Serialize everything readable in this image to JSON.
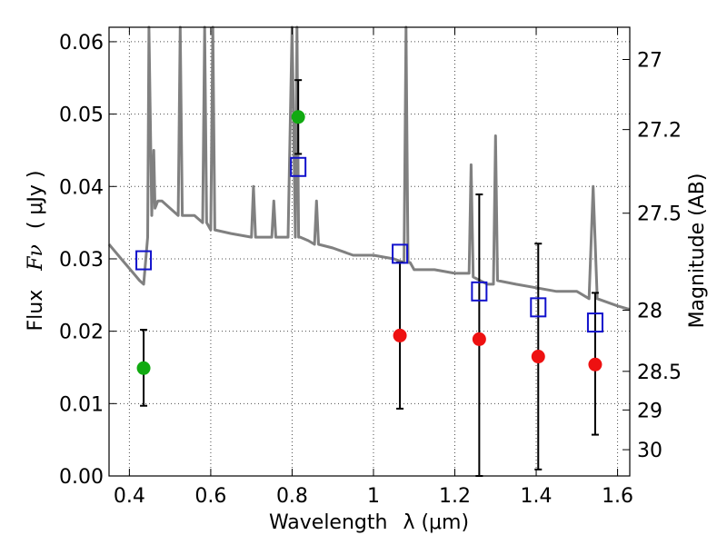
{
  "chart_data": {
    "type": "scatter",
    "xlabel": "Wavelength",
    "xlabel_symbol": "λ (μm)",
    "ylabel": "Flux",
    "ylabel_symbol": "Fν",
    "ylabel_unit": "( μJy )",
    "y2label": "Magnitude (AB)",
    "xlim": [
      0.35,
      1.63
    ],
    "ylim": [
      0.0,
      0.062
    ],
    "grid": true,
    "x_ticks": [
      {
        "value": 0.4,
        "label": "0.4"
      },
      {
        "value": 0.6,
        "label": "0.6"
      },
      {
        "value": 0.8,
        "label": "0.8"
      },
      {
        "value": 1.0,
        "label": "1"
      },
      {
        "value": 1.2,
        "label": "1.2"
      },
      {
        "value": 1.4,
        "label": "1.4"
      },
      {
        "value": 1.6,
        "label": "1.6"
      }
    ],
    "y_ticks": [
      {
        "value": 0.0,
        "label": "0.00"
      },
      {
        "value": 0.01,
        "label": "0.01"
      },
      {
        "value": 0.02,
        "label": "0.02"
      },
      {
        "value": 0.03,
        "label": "0.03"
      },
      {
        "value": 0.04,
        "label": "0.04"
      },
      {
        "value": 0.05,
        "label": "0.05"
      },
      {
        "value": 0.06,
        "label": "0.06"
      }
    ],
    "y2_ticks": [
      {
        "value": 27,
        "label": "27"
      },
      {
        "value": 27.2,
        "label": "27.2"
      },
      {
        "value": 27.5,
        "label": "27.5"
      },
      {
        "value": 28,
        "label": "28"
      },
      {
        "value": 28.5,
        "label": "28.5"
      },
      {
        "value": 29,
        "label": "29"
      },
      {
        "value": 30,
        "label": "30"
      }
    ],
    "colors": {
      "green": "#11aa11",
      "red": "#ee1111",
      "blue": "#1111cc",
      "model": "#808080"
    },
    "series": [
      {
        "marker": "green-circle",
        "x": [
          0.435,
          0.815
        ],
        "y": [
          0.0149,
          0.0496
        ],
        "yerr_low": [
          0.0097,
          0.0445
        ],
        "yerr_high": [
          0.0202,
          0.0547
        ]
      },
      {
        "marker": "red-circle",
        "x": [
          1.065,
          1.26,
          1.405,
          1.545
        ],
        "y": [
          0.0194,
          0.0189,
          0.0165,
          0.0154
        ],
        "yerr_low": [
          0.0093,
          0.0,
          0.0009,
          0.0057
        ],
        "yerr_high": [
          0.0295,
          0.0389,
          0.0321,
          0.0253
        ]
      },
      {
        "marker": "blue-open-square",
        "x": [
          0.435,
          0.815,
          1.065,
          1.26,
          1.405,
          1.545
        ],
        "y": [
          0.0298,
          0.0427,
          0.0307,
          0.0255,
          0.0233,
          0.0212
        ]
      },
      {
        "marker": "model-spectrum-line",
        "x": [
          0.35,
          0.38,
          0.41,
          0.425,
          0.435,
          0.445,
          0.448,
          0.455,
          0.46,
          0.463,
          0.47,
          0.48,
          0.5,
          0.52,
          0.525,
          0.53,
          0.56,
          0.58,
          0.585,
          0.59,
          0.6,
          0.605,
          0.61,
          0.65,
          0.7,
          0.705,
          0.71,
          0.75,
          0.755,
          0.76,
          0.79,
          0.8,
          0.808,
          0.812,
          0.816,
          0.82,
          0.84,
          0.855,
          0.86,
          0.865,
          0.9,
          0.95,
          1.0,
          1.05,
          1.075,
          1.08,
          1.085,
          1.09,
          1.1,
          1.15,
          1.2,
          1.235,
          1.24,
          1.245,
          1.28,
          1.295,
          1.3,
          1.305,
          1.35,
          1.4,
          1.45,
          1.5,
          1.53,
          1.54,
          1.55,
          1.6,
          1.63
        ],
        "y": [
          0.032,
          0.03,
          0.028,
          0.027,
          0.0265,
          0.033,
          0.062,
          0.036,
          0.045,
          0.037,
          0.038,
          0.038,
          0.037,
          0.036,
          0.062,
          0.036,
          0.036,
          0.035,
          0.062,
          0.035,
          0.034,
          0.062,
          0.034,
          0.0335,
          0.033,
          0.04,
          0.033,
          0.033,
          0.038,
          0.033,
          0.033,
          0.062,
          0.033,
          0.062,
          0.033,
          0.033,
          0.0325,
          0.032,
          0.038,
          0.032,
          0.0315,
          0.0305,
          0.0305,
          0.03,
          0.0295,
          0.062,
          0.0295,
          0.0295,
          0.0285,
          0.0285,
          0.028,
          0.028,
          0.043,
          0.0275,
          0.0265,
          0.0265,
          0.047,
          0.027,
          0.0265,
          0.026,
          0.0255,
          0.0255,
          0.0245,
          0.04,
          0.0245,
          0.0235,
          0.023
        ]
      }
    ]
  }
}
